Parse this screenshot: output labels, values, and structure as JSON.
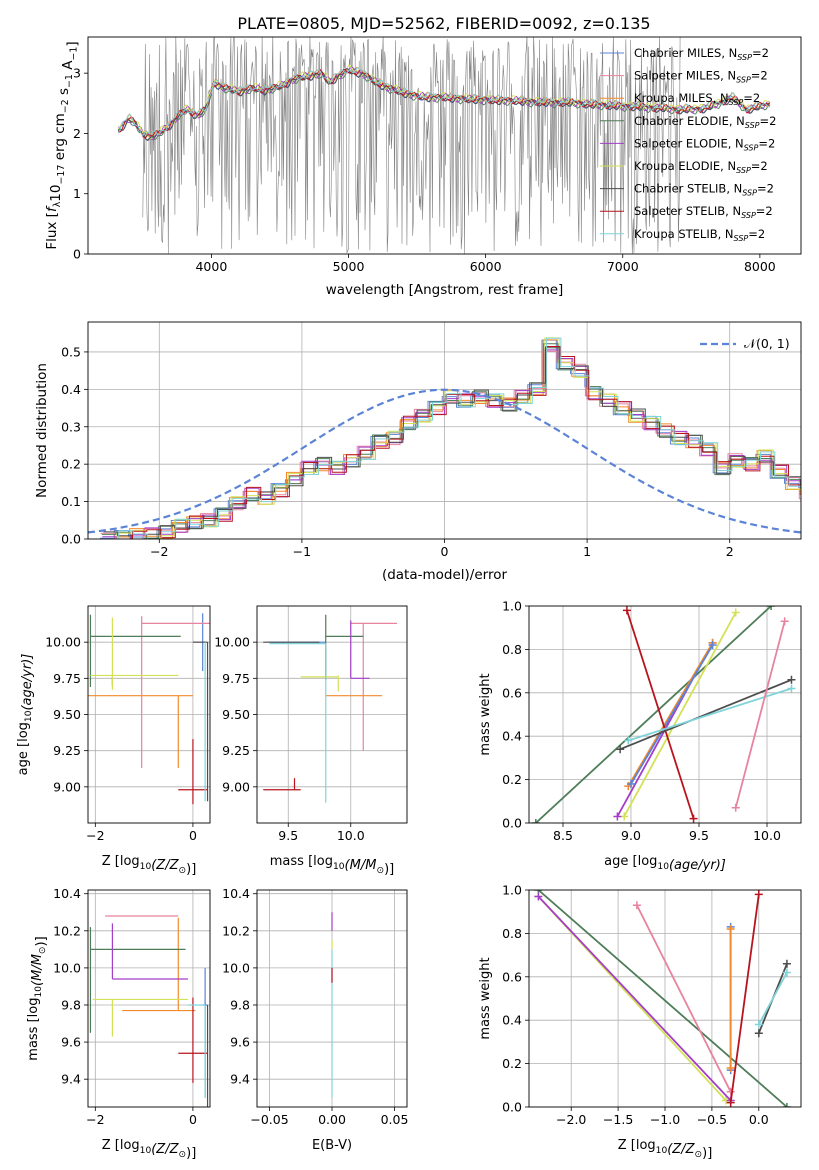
{
  "figure": {
    "title": "PLATE=0805, MJD=52562, FIBERID=0092, z=0.135"
  },
  "colors": {
    "Chabrier MILES": "#5b83d6",
    "Salpeter MILES": "#e8839f",
    "Kroupa MILES": "#f28a2c",
    "Chabrier ELODIE": "#4e7d58",
    "Salpeter ELODIE": "#a33ec7",
    "Kroupa ELODIE": "#d4e157",
    "Chabrier STELIB": "#4d4d4d",
    "Salpeter STELIB": "#b8141e",
    "Kroupa STELIB": "#7fd3d9",
    "data": "#808080",
    "grid": "#b0b0b0"
  },
  "chart_data": [
    {
      "id": "spectrum",
      "type": "line",
      "title": "PLATE=0805, MJD=52562, FIBERID=0092, z=0.135",
      "xlabel": "wavelength [Angstrom, rest frame]",
      "ylabel_parts": [
        "Flux [",
        "f",
        "λ",
        "10",
        "−17",
        " erg cm",
        "−2",
        " s",
        "−1",
        " A",
        "−1",
        "]"
      ],
      "xlim": [
        3100,
        8300
      ],
      "ylim": [
        0,
        3.6
      ],
      "xticks": [
        4000,
        5000,
        6000,
        7000,
        8000
      ],
      "yticks": [
        0,
        1,
        2,
        3
      ],
      "grid": false,
      "legend_position": "top-right",
      "legend": [
        {
          "name": "Chabrier MILES",
          "sub": "SSP",
          "suffix": "=2"
        },
        {
          "name": "Salpeter MILES",
          "sub": "SSP",
          "suffix": "=2"
        },
        {
          "name": "Kroupa MILES",
          "sub": "SSP",
          "suffix": "=2"
        },
        {
          "name": "Chabrier ELODIE",
          "sub": "SSP",
          "suffix": "=2"
        },
        {
          "name": "Salpeter ELODIE",
          "sub": "SSP",
          "suffix": "=2"
        },
        {
          "name": "Kroupa ELODIE",
          "sub": "SSP",
          "suffix": "=2"
        },
        {
          "name": "Chabrier STELIB",
          "sub": "SSP",
          "suffix": "=2"
        },
        {
          "name": "Salpeter STELIB",
          "sub": "SSP",
          "suffix": "=2"
        },
        {
          "name": "Kroupa STELIB",
          "sub": "SSP",
          "suffix": "=2"
        }
      ],
      "model_continuum": {
        "x": [
          3320,
          3400,
          3450,
          3500,
          3560,
          3620,
          3700,
          3760,
          3820,
          3900,
          3960,
          4020,
          4100,
          4200,
          4300,
          4400,
          4500,
          4600,
          4700,
          4800,
          4860,
          4920,
          5000,
          5100,
          5200,
          5300,
          5400,
          5500,
          5600,
          5700,
          5800,
          5900,
          6000,
          6100,
          6200,
          6300,
          6400,
          6500,
          6600,
          6700,
          6800,
          6900,
          7000,
          7100,
          7200,
          7300,
          7400,
          7500,
          7600,
          7700,
          7800,
          7900,
          8000,
          8080
        ],
        "y": [
          2.05,
          2.25,
          2.15,
          2.0,
          1.95,
          2.0,
          2.15,
          2.3,
          2.4,
          2.3,
          2.4,
          2.85,
          2.75,
          2.7,
          2.75,
          2.72,
          2.78,
          2.9,
          2.95,
          3.0,
          2.85,
          2.95,
          3.05,
          3.0,
          2.85,
          2.75,
          2.68,
          2.62,
          2.6,
          2.6,
          2.58,
          2.57,
          2.56,
          2.55,
          2.55,
          2.53,
          2.52,
          2.51,
          2.52,
          2.5,
          2.48,
          2.47,
          2.45,
          2.45,
          2.43,
          2.42,
          2.4,
          2.4,
          2.42,
          2.5,
          2.6,
          2.4,
          2.45,
          2.5
        ]
      },
      "data_noise_band": [
        3500,
        7420
      ]
    },
    {
      "id": "residuals",
      "type": "line",
      "xlabel": "(data-model)/error",
      "ylabel": "Normed distribution",
      "xlim": [
        -2.5,
        2.5
      ],
      "ylim": [
        0,
        0.58
      ],
      "xticks": [
        -2,
        -1,
        0,
        1,
        2
      ],
      "yticks": [
        0.0,
        0.1,
        0.2,
        0.3,
        0.4,
        0.5
      ],
      "grid": true,
      "legend_position": "top-right",
      "legend_label": "𝒩(0, 1)",
      "bin_width": 0.1,
      "bin_start": -2.4,
      "histogram": [
        0.002,
        0.005,
        0.01,
        0.012,
        0.018,
        0.035,
        0.045,
        0.05,
        0.065,
        0.095,
        0.12,
        0.11,
        0.13,
        0.16,
        0.19,
        0.2,
        0.19,
        0.21,
        0.23,
        0.26,
        0.27,
        0.31,
        0.33,
        0.35,
        0.38,
        0.37,
        0.38,
        0.37,
        0.36,
        0.38,
        0.4,
        0.52,
        0.47,
        0.45,
        0.39,
        0.37,
        0.35,
        0.33,
        0.31,
        0.29,
        0.27,
        0.26,
        0.24,
        0.19,
        0.21,
        0.2,
        0.22,
        0.18,
        0.15,
        0.12,
        0.11,
        0.1,
        0.09,
        0.1,
        0.08,
        0.09,
        0.07,
        0.05,
        0.04,
        0.03,
        0.035,
        0.03,
        0.02,
        0.03,
        0.025,
        0.02,
        0.015,
        0.01,
        0.005,
        0.002
      ]
    },
    {
      "id": "age-vs-Z",
      "type": "scatter",
      "xlabel_parts": [
        "Z [log",
        "10",
        "(Z/Z",
        "⊙",
        ")]"
      ],
      "ylabel_parts": [
        "age  [log",
        "10",
        "(age/yr)]"
      ],
      "xlim": [
        -2.15,
        0.35
      ],
      "ylim": [
        8.75,
        10.25
      ],
      "xticks": [
        -2,
        0
      ],
      "yticks": [
        9.0,
        9.25,
        9.5,
        9.75,
        10.0
      ],
      "grid": true,
      "points": [
        {
          "series": "Chabrier MILES",
          "x": 0.2,
          "y": 10.0,
          "xerr": [
            0.0,
            0.02
          ],
          "yerr": [
            0.2,
            0.2
          ]
        },
        {
          "series": "Salpeter MILES",
          "x": -1.05,
          "y": 10.13,
          "xerr": [
            0.0,
            1.7
          ],
          "yerr": [
            1.0,
            0.05
          ]
        },
        {
          "series": "Kroupa MILES",
          "x": -0.3,
          "y": 9.63,
          "xerr": [
            1.85,
            0.3
          ],
          "yerr": [
            0.5,
            0.0
          ]
        },
        {
          "series": "Chabrier ELODIE",
          "x": -2.1,
          "y": 10.04,
          "xerr": [
            0.0,
            1.85
          ],
          "yerr": [
            0.35,
            0.15
          ]
        },
        {
          "series": "Salpeter ELODIE",
          "x": -1.65,
          "y": 9.75,
          "xerr": [
            0.0,
            0.0
          ],
          "yerr": [
            0.05,
            0.01
          ]
        },
        {
          "series": "Kroupa ELODIE",
          "x": -1.65,
          "y": 9.77,
          "xerr": [
            0.45,
            1.35
          ],
          "yerr": [
            0.1,
            0.4
          ]
        },
        {
          "series": "Chabrier STELIB",
          "x": 0.3,
          "y": 10.0,
          "xerr": [
            0.3,
            0.0
          ],
          "yerr": [
            1.1,
            0.0
          ]
        },
        {
          "series": "Salpeter STELIB",
          "x": 0.0,
          "y": 8.98,
          "xerr": [
            0.3,
            0.3
          ],
          "yerr": [
            0.1,
            0.35
          ]
        },
        {
          "series": "Kroupa STELIB",
          "x": 0.25,
          "y": 10.0,
          "xerr": [
            0.0,
            0.0
          ],
          "yerr": [
            1.1,
            0.0
          ]
        }
      ]
    },
    {
      "id": "age-vs-mass",
      "type": "scatter",
      "xlabel_parts": [
        "mass [log",
        "10",
        "(M/M",
        "⊙",
        ")]"
      ],
      "xlim": [
        9.25,
        10.45
      ],
      "ylim": [
        8.75,
        10.25
      ],
      "xticks": [
        9.5,
        10.0
      ],
      "yticks": [
        9.0,
        9.25,
        9.5,
        9.75,
        10.0
      ],
      "grid": true,
      "points": [
        {
          "series": "Chabrier MILES",
          "x": 9.8,
          "y": 10.0,
          "xerr": [
            0.45,
            0.0
          ],
          "yerr": [
            0.0,
            0.0
          ]
        },
        {
          "series": "Salpeter MILES",
          "x": 10.1,
          "y": 10.13,
          "xerr": [
            0.1,
            0.27
          ],
          "yerr": [
            0.88,
            0.0
          ]
        },
        {
          "series": "Kroupa MILES",
          "x": 9.8,
          "y": 9.63,
          "xerr": [
            0.0,
            0.45
          ],
          "yerr": [
            0.0,
            0.0
          ]
        },
        {
          "series": "Chabrier ELODIE",
          "x": 9.8,
          "y": 10.04,
          "xerr": [
            0.0,
            0.3
          ],
          "yerr": [
            0.3,
            0.15
          ]
        },
        {
          "series": "Salpeter ELODIE",
          "x": 10.0,
          "y": 9.75,
          "xerr": [
            0.0,
            0.15
          ],
          "yerr": [
            0.0,
            0.4
          ]
        },
        {
          "series": "Kroupa ELODIE",
          "x": 9.9,
          "y": 9.76,
          "xerr": [
            0.3,
            0.0
          ],
          "yerr": [
            0.1,
            0.01
          ]
        },
        {
          "series": "Chabrier STELIB",
          "x": 9.75,
          "y": 10.0,
          "xerr": [
            0.45,
            0.0
          ],
          "yerr": [
            0.0,
            0.0
          ]
        },
        {
          "series": "Salpeter STELIB",
          "x": 9.55,
          "y": 8.98,
          "xerr": [
            0.25,
            0.05
          ],
          "yerr": [
            0.0,
            0.08
          ]
        },
        {
          "series": "Kroupa STELIB",
          "x": 9.8,
          "y": 9.99,
          "xerr": [
            0.45,
            0.0
          ],
          "yerr": [
            1.1,
            0.0
          ]
        }
      ]
    },
    {
      "id": "weight-vs-age",
      "type": "line",
      "xlabel_parts": [
        "age  [log",
        "10",
        "(age/yr)]"
      ],
      "ylabel": "mass weight",
      "xlim": [
        8.25,
        10.25
      ],
      "ylim": [
        0,
        1.0
      ],
      "xticks": [
        8.5,
        9.0,
        9.5,
        10.0
      ],
      "yticks": [
        0.0,
        0.2,
        0.4,
        0.6,
        0.8,
        1.0
      ],
      "grid": true,
      "segments": [
        {
          "series": "Chabrier ELODIE",
          "x": [
            8.3,
            10.03
          ],
          "y": [
            0.0,
            1.0
          ]
        },
        {
          "series": "Kroupa ELODIE",
          "x": [
            8.95,
            9.77
          ],
          "y": [
            0.03,
            0.97
          ]
        },
        {
          "series": "Salpeter ELODIE",
          "x": [
            8.9,
            9.6
          ],
          "y": [
            0.03,
            0.83
          ]
        },
        {
          "series": "Kroupa MILES",
          "x": [
            8.98,
            9.6
          ],
          "y": [
            0.17,
            0.83
          ]
        },
        {
          "series": "Chabrier MILES",
          "x": [
            9.0,
            9.6
          ],
          "y": [
            0.18,
            0.82
          ]
        },
        {
          "series": "Salpeter STELIB",
          "x": [
            8.97,
            9.46
          ],
          "y": [
            0.98,
            0.02
          ]
        },
        {
          "series": "Chabrier STELIB",
          "x": [
            8.92,
            10.18
          ],
          "y": [
            0.34,
            0.66
          ]
        },
        {
          "series": "Kroupa STELIB",
          "x": [
            8.98,
            10.18
          ],
          "y": [
            0.38,
            0.62
          ]
        },
        {
          "series": "Salpeter MILES",
          "x": [
            9.77,
            10.13
          ],
          "y": [
            0.07,
            0.93
          ]
        }
      ]
    },
    {
      "id": "mass-vs-Z",
      "type": "scatter",
      "xlabel_parts": [
        "Z [log",
        "10",
        "(Z/Z",
        "⊙",
        ")]"
      ],
      "ylabel_parts": [
        "mass [log",
        "10",
        "(M/M",
        "⊙",
        ")]"
      ],
      "xlim": [
        -2.15,
        0.35
      ],
      "ylim": [
        9.25,
        10.42
      ],
      "xticks": [
        -2,
        0
      ],
      "yticks": [
        9.4,
        9.6,
        9.8,
        10.0,
        10.2,
        10.4
      ],
      "grid": true,
      "points": [
        {
          "series": "Chabrier MILES",
          "x": 0.25,
          "y": 9.8,
          "xerr": [
            0.05,
            0.05
          ],
          "yerr": [
            0.5,
            0.2
          ]
        },
        {
          "series": "Salpeter MILES",
          "x": -1.05,
          "y": 10.28,
          "xerr": [
            0.75,
            0.75
          ],
          "yerr": [
            0.0,
            0.0
          ]
        },
        {
          "series": "Kroupa MILES",
          "x": -0.3,
          "y": 9.77,
          "xerr": [
            1.15,
            0.35
          ],
          "yerr": [
            0.0,
            0.5
          ]
        },
        {
          "series": "Chabrier ELODIE",
          "x": -2.1,
          "y": 10.1,
          "xerr": [
            0.0,
            1.95
          ],
          "yerr": [
            0.45,
            0.12
          ]
        },
        {
          "series": "Salpeter ELODIE",
          "x": -1.65,
          "y": 9.94,
          "xerr": [
            0.0,
            1.55
          ],
          "yerr": [
            0.0,
            0.3
          ]
        },
        {
          "series": "Kroupa ELODIE",
          "x": -1.65,
          "y": 9.83,
          "xerr": [
            0.4,
            1.55
          ],
          "yerr": [
            0.2,
            0.0
          ]
        },
        {
          "series": "Chabrier STELIB",
          "x": 0.3,
          "y": 9.8,
          "xerr": [
            0.0,
            0.0
          ],
          "yerr": [
            0.55,
            0.0
          ]
        },
        {
          "series": "Salpeter STELIB",
          "x": 0.0,
          "y": 9.54,
          "xerr": [
            0.3,
            0.3
          ],
          "yerr": [
            0.16,
            0.3
          ]
        },
        {
          "series": "Kroupa STELIB",
          "x": 0.25,
          "y": 9.8,
          "xerr": [
            0.35,
            0.0
          ],
          "yerr": [
            0.5,
            0.0
          ]
        }
      ]
    },
    {
      "id": "mass-vs-EBV",
      "type": "scatter",
      "xlabel": "E(B-V)",
      "xlim": [
        -0.06,
        0.06
      ],
      "ylim": [
        9.25,
        10.42
      ],
      "xticks": [
        -0.05,
        0.0,
        0.05
      ],
      "xtick_labels": [
        "−0.05",
        "0.00",
        "0.05"
      ],
      "yticks": [
        9.4,
        9.6,
        9.8,
        10.0,
        10.2,
        10.4
      ],
      "grid": true,
      "points": [
        {
          "series": "Kroupa STELIB",
          "x": 0.0,
          "y": 9.8,
          "xerr": [
            0,
            0
          ],
          "yerr": [
            0.5,
            0.3
          ]
        },
        {
          "series": "Salpeter ELODIE",
          "x": 0.0,
          "y": 10.25,
          "xerr": [
            0,
            0
          ],
          "yerr": [
            0.05,
            0.05
          ]
        },
        {
          "series": "Salpeter STELIB",
          "x": 0.0,
          "y": 10.0,
          "xerr": [
            0,
            0
          ],
          "yerr": [
            0.08,
            0.0
          ]
        },
        {
          "series": "Kroupa ELODIE",
          "x": 0.0,
          "y": 10.15,
          "xerr": [
            0,
            0
          ],
          "yerr": [
            0.05,
            0.0
          ]
        }
      ]
    },
    {
      "id": "weight-vs-Z",
      "type": "line",
      "xlabel_parts": [
        "Z [log",
        "10",
        "(Z/Z",
        "⊙",
        ")]"
      ],
      "ylabel": "mass weight",
      "xlim": [
        -2.45,
        0.45
      ],
      "ylim": [
        0,
        1.0
      ],
      "xticks": [
        -2.0,
        -1.5,
        -1.0,
        -0.5,
        0.0
      ],
      "xtick_labels": [
        "−2.0",
        "−1.5",
        "−1.0",
        "−0.5",
        "0.0"
      ],
      "yticks": [
        0.0,
        0.2,
        0.4,
        0.6,
        0.8,
        1.0
      ],
      "grid": true,
      "segments": [
        {
          "series": "Chabrier ELODIE",
          "x": [
            -2.35,
            0.3
          ],
          "y": [
            1.0,
            0.0
          ]
        },
        {
          "series": "Kroupa ELODIE",
          "x": [
            -2.35,
            -0.35
          ],
          "y": [
            0.97,
            0.03
          ]
        },
        {
          "series": "Salpeter ELODIE",
          "x": [
            -2.35,
            -0.3
          ],
          "y": [
            0.97,
            0.03
          ]
        },
        {
          "series": "Salpeter MILES",
          "x": [
            -1.3,
            -0.3
          ],
          "y": [
            0.93,
            0.07
          ]
        },
        {
          "series": "Chabrier MILES",
          "x": [
            -0.3,
            -0.3
          ],
          "y": [
            0.83,
            0.17
          ]
        },
        {
          "series": "Kroupa MILES",
          "x": [
            -0.3,
            -0.3
          ],
          "y": [
            0.82,
            0.18
          ]
        },
        {
          "series": "Salpeter STELIB",
          "x": [
            -0.3,
            0.0
          ],
          "y": [
            0.02,
            0.98
          ]
        },
        {
          "series": "Chabrier STELIB",
          "x": [
            0.0,
            0.3
          ],
          "y": [
            0.34,
            0.66
          ]
        },
        {
          "series": "Kroupa STELIB",
          "x": [
            0.0,
            0.3
          ],
          "y": [
            0.38,
            0.62
          ]
        }
      ]
    }
  ]
}
